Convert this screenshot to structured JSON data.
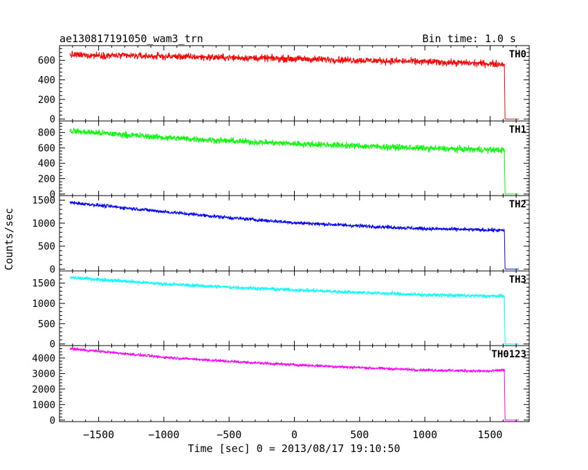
{
  "header": {
    "title": "ae130817191050_wam3_trn",
    "bin_time": "Bin time: 1.0 s"
  },
  "chart_data": {
    "type": "line",
    "shared_x": {
      "label": "Time [sec] 0 = 2013/08/17 19:10:50",
      "range": [
        -1800,
        1800
      ],
      "ticks": [
        -1500,
        -1000,
        -500,
        0,
        500,
        1000,
        1500
      ],
      "tick_labels": [
        "−1500",
        "−1000",
        "−500",
        "0",
        "500",
        "1000",
        "1500"
      ]
    },
    "shared_ylabel": "Counts/sec",
    "panels": [
      {
        "name": "TH0",
        "color": "#ff0000",
        "ylim": [
          -20,
          750
        ],
        "yticks": [
          0,
          200,
          400,
          600
        ],
        "x": [
          -1720,
          -1000,
          -500,
          0,
          500,
          1000,
          1500,
          1610,
          1615,
          1720
        ],
        "y": [
          655,
          640,
          628,
          615,
          600,
          585,
          565,
          560,
          0,
          0
        ],
        "noise": 35
      },
      {
        "name": "TH1",
        "color": "#00ff00",
        "ylim": [
          -20,
          950
        ],
        "yticks": [
          0,
          200,
          400,
          600,
          800
        ],
        "x": [
          -1720,
          -1000,
          -500,
          0,
          500,
          1000,
          1500,
          1610,
          1615,
          1720
        ],
        "y": [
          820,
          735,
          690,
          655,
          625,
          595,
          575,
          570,
          0,
          0
        ],
        "noise": 40
      },
      {
        "name": "TH2",
        "color": "#0000ff",
        "ylim": [
          -40,
          1600
        ],
        "yticks": [
          0,
          500,
          1000,
          1500
        ],
        "x": [
          -1720,
          -1000,
          -500,
          0,
          500,
          1000,
          1500,
          1610,
          1615,
          1720
        ],
        "y": [
          1450,
          1250,
          1120,
          1010,
          940,
          880,
          850,
          840,
          0,
          0
        ],
        "noise": 40
      },
      {
        "name": "TH3",
        "color": "#00ffff",
        "ylim": [
          -40,
          1800
        ],
        "yticks": [
          0,
          500,
          1000,
          1500
        ],
        "x": [
          -1720,
          -1000,
          -500,
          0,
          500,
          1000,
          1500,
          1610,
          1615,
          1720
        ],
        "y": [
          1640,
          1480,
          1400,
          1330,
          1270,
          1210,
          1180,
          1180,
          0,
          0
        ],
        "noise": 45
      },
      {
        "name": "TH0123",
        "color": "#ff00ff",
        "ylim": [
          -100,
          4800
        ],
        "yticks": [
          0,
          1000,
          2000,
          3000,
          4000
        ],
        "x": [
          -1720,
          -1000,
          -500,
          0,
          500,
          1000,
          1500,
          1610,
          1615,
          1720
        ],
        "y": [
          4600,
          4050,
          3780,
          3560,
          3380,
          3220,
          3150,
          3230,
          0,
          0
        ],
        "noise": 90
      }
    ]
  }
}
